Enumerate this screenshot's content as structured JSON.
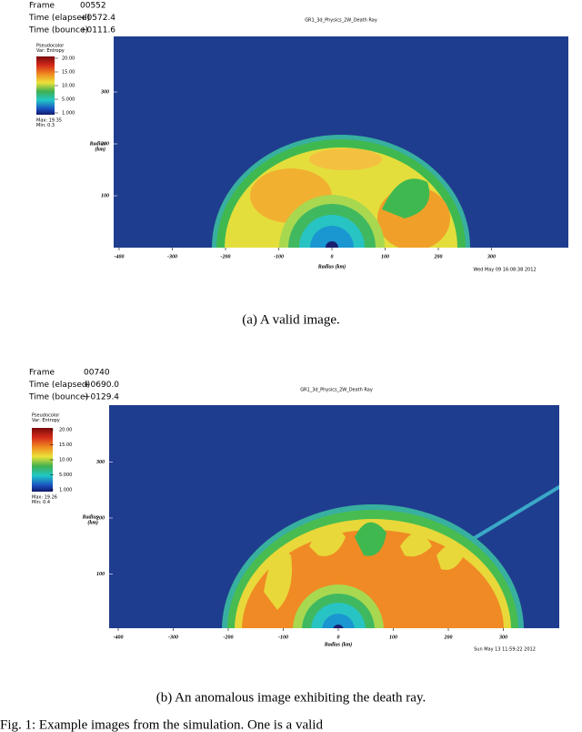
{
  "figures": [
    {
      "info": [
        {
          "label": "Frame",
          "value": "00552"
        },
        {
          "label": "Time (elapsed)",
          "value": "+0572.4"
        },
        {
          "label": "Time (bounce)",
          "value": "+0111.6"
        }
      ],
      "title": "GR1_3d_Physics_2W_Death Ray",
      "legend": {
        "title": [
          "Pseudocolor",
          "Var: Entropy"
        ],
        "ticks": [
          "20.00",
          "15.00",
          "10.00",
          "5.000",
          "1.000"
        ],
        "range": [
          "Max: 19.35",
          "Min: 0.3"
        ]
      },
      "y_label": [
        "Radius",
        "(km)"
      ],
      "yticks": [
        300,
        200,
        100
      ],
      "x_label": "Radius (km)",
      "xticks": [
        -400,
        -300,
        -200,
        -100,
        0,
        100,
        200,
        300
      ],
      "timestamp": "Wed May 09 16:08:38 2012",
      "caption": "(a) A valid image."
    },
    {
      "info": [
        {
          "label": "Frame",
          "value": "00740"
        },
        {
          "label": "Time (elapsed)",
          "value": "+0690.0"
        },
        {
          "label": "Time (bounce)",
          "value": "+0129.4"
        }
      ],
      "title": "GR1_3d_Physics_2W_Death Ray",
      "legend": {
        "title": [
          "Pseudocolor",
          "Var: Entropy"
        ],
        "ticks": [
          "20.00",
          "15.00",
          "10.00",
          "5.000",
          "1.000"
        ],
        "range": [
          "Max: 19.26",
          "Min: 0.4"
        ]
      },
      "y_label": [
        "Radius",
        "(km)"
      ],
      "yticks": [
        300,
        200,
        100
      ],
      "x_label": "Radius (km)",
      "xticks": [
        -400,
        -300,
        -200,
        -100,
        0,
        100,
        200,
        300
      ],
      "timestamp": "Sun May 13 11:59:22 2012",
      "caption": "(b) An anomalous image exhibiting the death ray."
    }
  ],
  "figure_caption": "Fig. 1: Example images from the simulation. One is a valid"
}
